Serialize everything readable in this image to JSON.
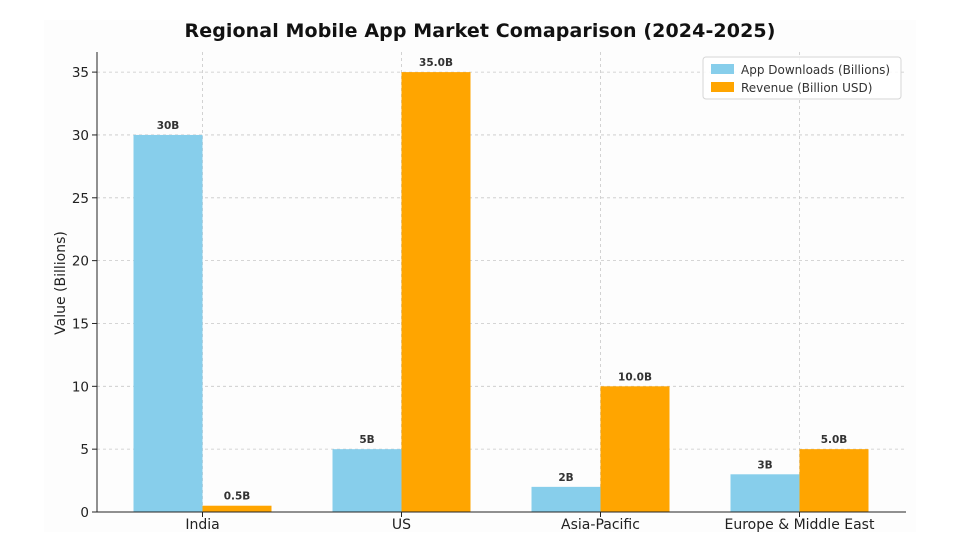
{
  "chart_data": {
    "type": "bar",
    "title": "Regional Mobile App Market Comaparison (2024-2025)",
    "xlabel": "",
    "ylabel": "Value (Billions)",
    "categories": [
      "India",
      "US",
      "Asia-Pacific",
      "Europe & Middle East"
    ],
    "ylim": [
      0,
      36.6
    ],
    "yticks": [
      0,
      5,
      10,
      15,
      20,
      25,
      30,
      35
    ],
    "grid": true,
    "legend_position": "top-right",
    "series": [
      {
        "name": "App Downloads (Billions)",
        "color": "#87ceeb",
        "values": [
          30,
          5,
          2,
          3
        ],
        "labels": [
          "30B",
          "5B",
          "2B",
          "3B"
        ]
      },
      {
        "name": "Revenue (Billion USD)",
        "color": "#ffa500",
        "values": [
          0.5,
          35,
          10,
          5
        ],
        "labels": [
          "0.5B",
          "35.0B",
          "10.0B",
          "5.0B"
        ]
      }
    ]
  }
}
